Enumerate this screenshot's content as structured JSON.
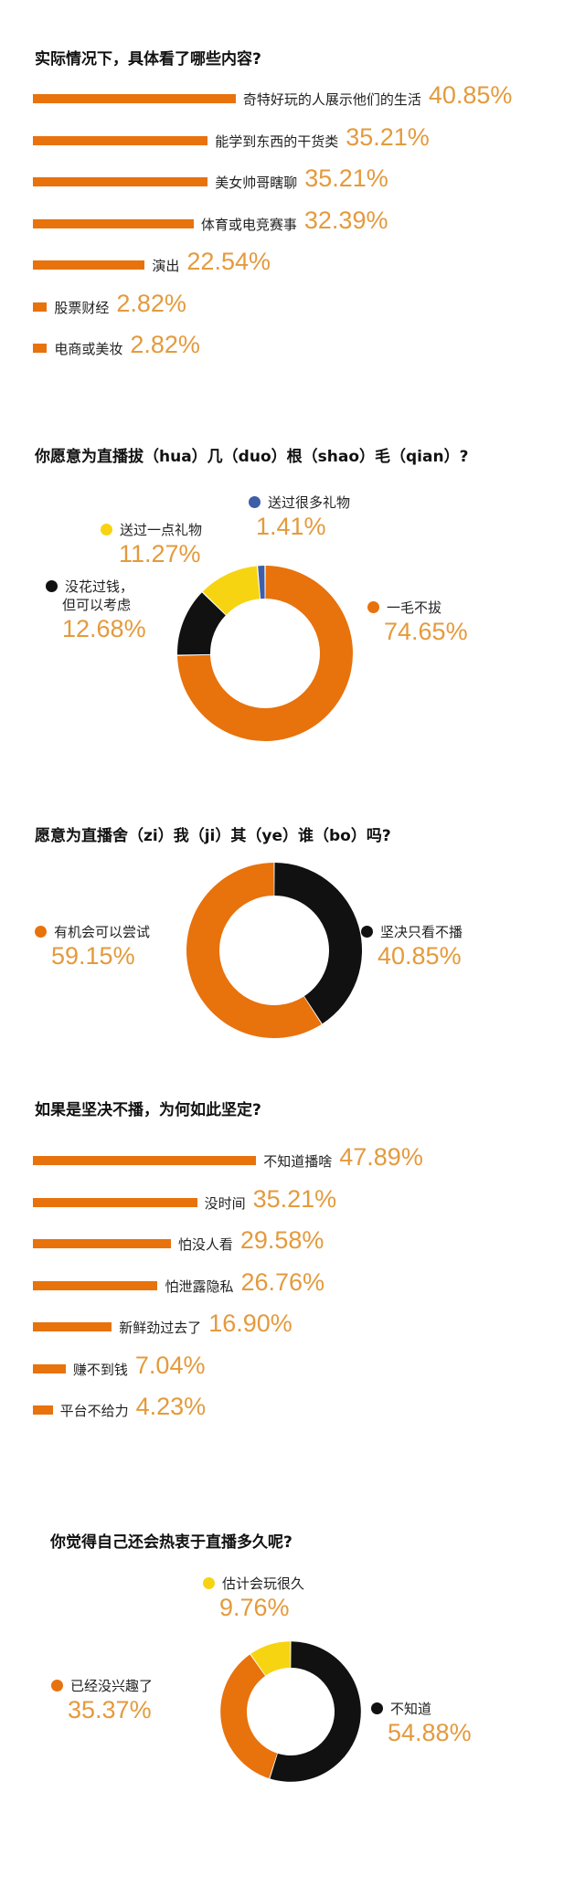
{
  "chart_data": [
    {
      "type": "bar",
      "title": "实际情况下，具体看了哪些内容?",
      "categories": [
        "奇特好玩的人展示他们的生活",
        "能学到东西的干货类",
        "美女帅哥瞎聊",
        "体育或电竞赛事",
        "演出",
        "股票财经",
        "电商或美妆"
      ],
      "values": [
        40.85,
        35.21,
        35.21,
        32.39,
        22.54,
        2.82,
        2.82
      ],
      "value_labels": [
        "40.85%",
        "35.21%",
        "35.21%",
        "32.39%",
        "22.54%",
        "2.82%",
        "2.82%"
      ],
      "color": "#e8720c"
    },
    {
      "type": "pie",
      "title": "你愿意为直播拔（hua）几（duo）根（shao）毛（qian）?",
      "categories": [
        "一毛不拔",
        "没花过钱，但可以考虑",
        "送过一点礼物",
        "送过很多礼物"
      ],
      "values": [
        74.65,
        12.68,
        11.27,
        1.41
      ],
      "value_labels": [
        "74.65%",
        "12.68%",
        "11.27%",
        "1.41%"
      ],
      "colors": [
        "#e8720c",
        "#111111",
        "#f7d411",
        "#3d5fa8"
      ]
    },
    {
      "type": "pie",
      "title": "愿意为直播舍（zi）我（ji）其（ye）谁（bo）吗?",
      "categories": [
        "坚决只看不播",
        "有机会可以尝试"
      ],
      "values": [
        40.85,
        59.15
      ],
      "value_labels": [
        "40.85%",
        "59.15%"
      ],
      "colors": [
        "#111111",
        "#e8720c"
      ]
    },
    {
      "type": "bar",
      "title": "如果是坚决不播，为何如此坚定?",
      "categories": [
        "不知道播啥",
        "没时间",
        "怕没人看",
        "怕泄露隐私",
        "新鲜劲过去了",
        "赚不到钱",
        "平台不给力"
      ],
      "values": [
        47.89,
        35.21,
        29.58,
        26.76,
        16.9,
        7.04,
        4.23
      ],
      "value_labels": [
        "47.89%",
        "35.21%",
        "29.58%",
        "26.76%",
        "16.90%",
        "7.04%",
        "4.23%"
      ],
      "color": "#e8720c"
    },
    {
      "type": "pie",
      "title": "你觉得自己还会热衷于直播多久呢?",
      "categories": [
        "不知道",
        "已经没兴趣了",
        "估计会玩很久"
      ],
      "values": [
        54.88,
        35.37,
        9.76
      ],
      "value_labels": [
        "54.88%",
        "35.37%",
        "9.76%"
      ],
      "colors": [
        "#111111",
        "#e8720c",
        "#f7d411"
      ]
    }
  ],
  "labels": {
    "c2_nospend_line1": "没花过钱，",
    "c2_nospend_line2": "但可以考虑"
  }
}
